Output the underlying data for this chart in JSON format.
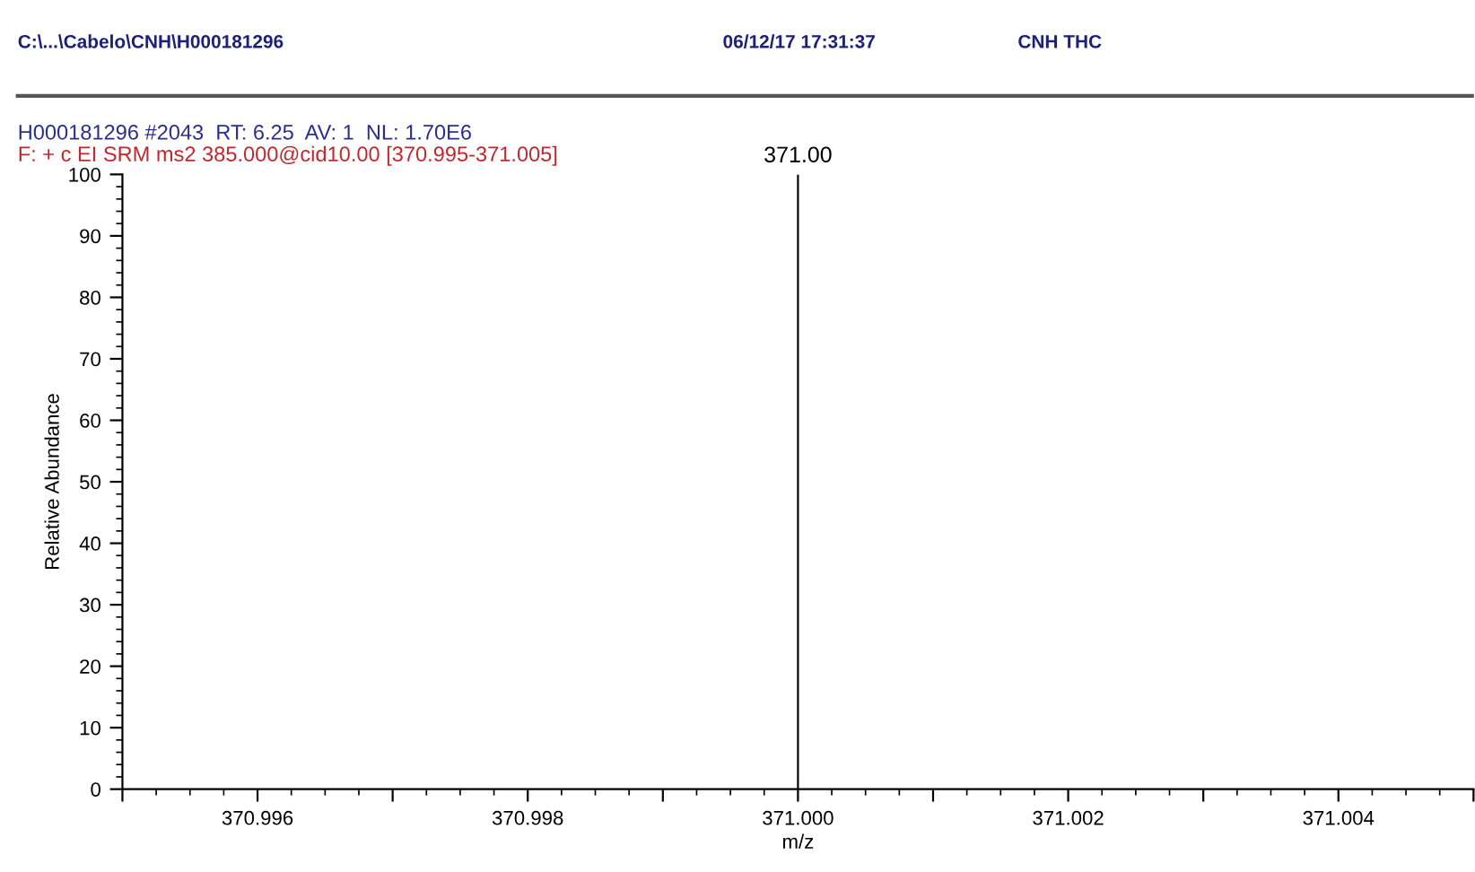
{
  "chart_data": {
    "type": "bar",
    "title": "H000181296 #2043  RT: 6.25  AV: 1  NL: 1.70E6",
    "subtitle": "F: + c EI SRM ms2 385.000@cid10.00 [370.995-371.005]",
    "annotations": [
      "C:\\...\\Cabelo\\CNH\\H000181296",
      "06/12/17 17:31:37",
      "CNH THC",
      {
        "text": "371.00",
        "x": 371.0,
        "y": 100
      }
    ],
    "xlabel": "m/z",
    "ylabel": "Relative Abundance",
    "x": [
      371.0
    ],
    "values": [
      100
    ],
    "color": "#000000",
    "xlim": [
      370.995,
      371.005
    ],
    "xticks": [
      {
        "value": 370.995,
        "label": null
      },
      {
        "value": 370.996,
        "label": "370.996"
      },
      {
        "value": 370.997,
        "label": null
      },
      {
        "value": 370.998,
        "label": "370.998"
      },
      {
        "value": 370.999,
        "label": null
      },
      {
        "value": 371.0,
        "label": "371.000"
      },
      {
        "value": 371.001,
        "label": null
      },
      {
        "value": 371.002,
        "label": "371.002"
      },
      {
        "value": 371.003,
        "label": null
      },
      {
        "value": 371.004,
        "label": "371.004"
      },
      {
        "value": 371.005,
        "label": null
      }
    ],
    "ylim": [
      0,
      100
    ],
    "yticks": [
      0,
      10,
      20,
      30,
      40,
      50,
      60,
      70,
      80,
      90,
      100
    ],
    "grid": false,
    "legend": false
  }
}
